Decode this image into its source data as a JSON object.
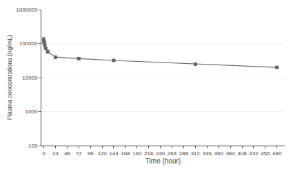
{
  "chart_data": {
    "type": "line",
    "x": [
      0,
      0.5,
      1,
      2,
      4,
      8,
      24,
      72,
      144,
      312,
      480
    ],
    "values": [
      130000,
      115000,
      105000,
      90000,
      72000,
      58000,
      40000,
      36000,
      32000,
      25000,
      20000
    ],
    "errors": [
      20000,
      12000,
      10000,
      8000,
      6000,
      5000,
      3500,
      2800,
      2000,
      2000,
      1500
    ],
    "color": "#666666",
    "marker": "square",
    "line_style": "solid",
    "xlabel": "Time (hour)",
    "ylabel": "Plasma concentrations (ng/mL)",
    "log": "y",
    "xlim": [
      -5,
      496
    ],
    "ylim": [
      100,
      1000000
    ],
    "xticks": [
      0,
      24,
      48,
      72,
      96,
      120,
      144,
      168,
      192,
      216,
      240,
      264,
      288,
      312,
      336,
      360,
      384,
      408,
      432,
      456,
      480
    ],
    "yticks": [
      100,
      1000,
      10000,
      100000,
      1000000
    ],
    "grid": "y"
  }
}
